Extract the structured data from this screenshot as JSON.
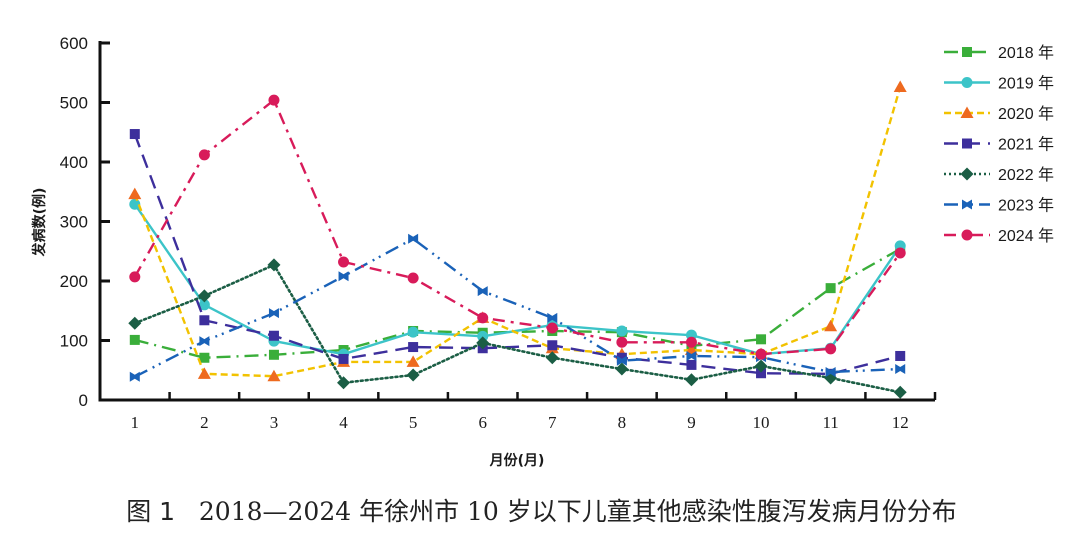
{
  "chart_data": {
    "type": "line",
    "title": "",
    "caption_label": "图 1",
    "caption_text": "2018—2024 年徐州市 10 岁以下儿童其他感染性腹泻发病月份分布",
    "xlabel": "月份(月)",
    "ylabel": "发病数(例)",
    "x": [
      1,
      2,
      3,
      4,
      5,
      6,
      7,
      8,
      9,
      10,
      11,
      12
    ],
    "x_tick_labels": [
      "1",
      "2",
      "3",
      "4",
      "5",
      "6",
      "7",
      "8",
      "9",
      "10",
      "11",
      "12"
    ],
    "ylim": [
      0,
      600
    ],
    "y_ticks": [
      0,
      100,
      200,
      300,
      400,
      500,
      600
    ],
    "grid": false,
    "legend_position": "right",
    "series": [
      {
        "name": "2018 年",
        "color": "#3aae3a",
        "marker": "square",
        "dash": "dashdot-long",
        "values": [
          101,
          71,
          76,
          84,
          116,
          113,
          116,
          114,
          91,
          102,
          188,
          254
        ]
      },
      {
        "name": "2019 年",
        "color": "#3cc4c8",
        "marker": "circle",
        "dash": "solid",
        "values": [
          329,
          160,
          99,
          77,
          114,
          107,
          126,
          116,
          109,
          77,
          87,
          259
        ]
      },
      {
        "name": "2020 年",
        "color": "#f2c200",
        "marker": "triangle",
        "markerColor": "#ee6a1f",
        "dash": "dashed",
        "values": [
          346,
          44,
          40,
          64,
          64,
          138,
          87,
          77,
          84,
          77,
          124,
          526
        ]
      },
      {
        "name": "2021 年",
        "color": "#3d2f9c",
        "marker": "square",
        "dash": "long-dash",
        "values": [
          447,
          134,
          108,
          69,
          89,
          87,
          92,
          71,
          59,
          45,
          44,
          74
        ]
      },
      {
        "name": "2022 年",
        "color": "#1b5e45",
        "marker": "diamond",
        "dash": "dotted",
        "values": [
          129,
          175,
          227,
          29,
          42,
          96,
          71,
          52,
          34,
          57,
          37,
          13
        ]
      },
      {
        "name": "2023 年",
        "color": "#1a62b8",
        "marker": "bowtie",
        "dash": "dashdotdot",
        "values": [
          39,
          99,
          146,
          208,
          271,
          183,
          138,
          66,
          74,
          72,
          47,
          52
        ]
      },
      {
        "name": "2024 年",
        "color": "#d81b5a",
        "marker": "circle",
        "dash": "dashdot",
        "values": [
          207,
          412,
          504,
          232,
          205,
          138,
          121,
          97,
          97,
          77,
          86,
          247
        ]
      }
    ]
  }
}
